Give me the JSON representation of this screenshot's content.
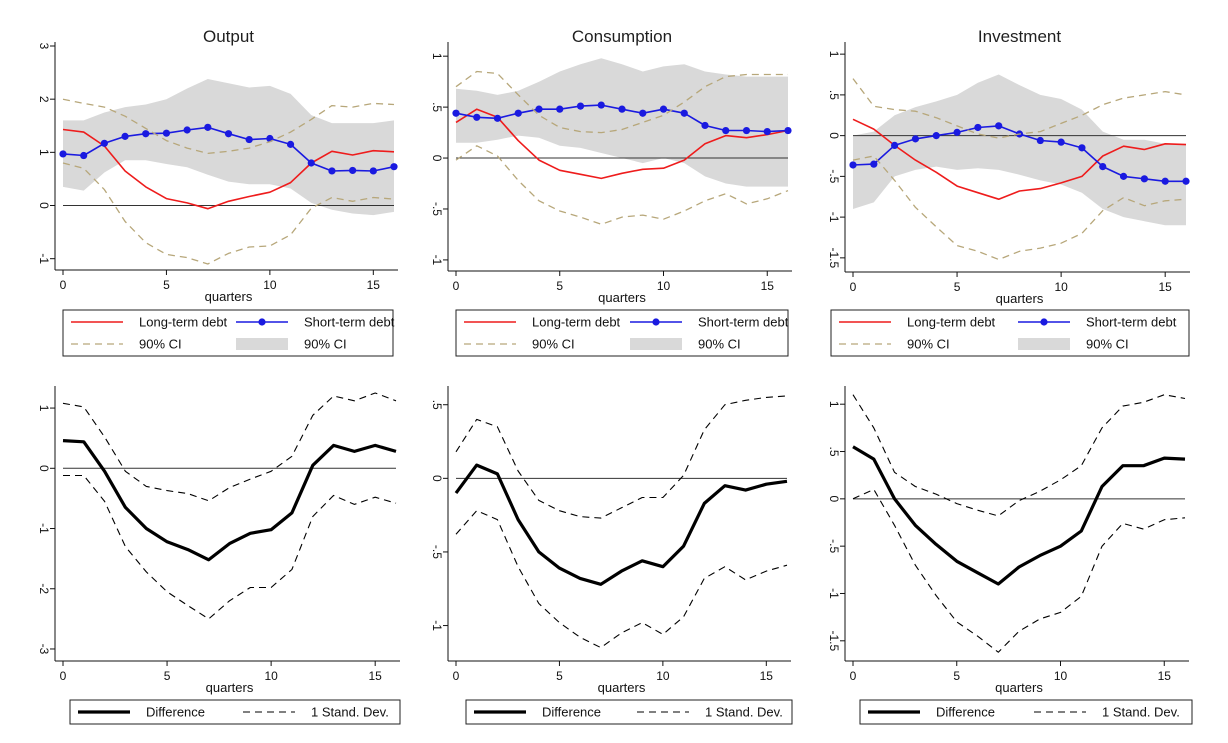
{
  "colors": {
    "long_term": "#ee1c1c",
    "short_term": "#1a1ae0",
    "ci_line": "#b7a77a",
    "ci_band": "#d9d9d9",
    "difference": "#000000"
  },
  "chart_data": [
    {
      "type": "line",
      "title": "Output",
      "xlabel": "quarters",
      "x": [
        0,
        1,
        2,
        3,
        4,
        5,
        6,
        7,
        8,
        9,
        10,
        11,
        12,
        13,
        14,
        15,
        16
      ],
      "xlim": [
        0,
        16
      ],
      "xticks": [
        0,
        5,
        10,
        15
      ],
      "ylim": [
        -1.1,
        3
      ],
      "yticks": [
        -1,
        0,
        1,
        2,
        3
      ],
      "ytick_labels": [
        "-1",
        "0",
        "1",
        "2",
        "3"
      ],
      "zero_line": true,
      "series": [
        {
          "name": "Long-term debt",
          "kind": "line",
          "values": [
            1.43,
            1.38,
            1.12,
            0.65,
            0.35,
            0.13,
            0.05,
            -0.06,
            0.08,
            0.17,
            0.25,
            0.43,
            0.8,
            1.02,
            0.95,
            1.03,
            1.01
          ]
        },
        {
          "name": "Short-term debt",
          "kind": "marker-line",
          "values": [
            0.97,
            0.94,
            1.17,
            1.3,
            1.35,
            1.36,
            1.42,
            1.47,
            1.35,
            1.24,
            1.26,
            1.15,
            0.8,
            0.65,
            0.66,
            0.65,
            0.73
          ]
        },
        {
          "name": "90% CI",
          "kind": "dash",
          "values": [
            2.0,
            1.92,
            1.85,
            1.68,
            1.45,
            1.22,
            1.08,
            0.98,
            1.02,
            1.08,
            1.2,
            1.38,
            1.62,
            1.88,
            1.85,
            1.92,
            1.9
          ]
        },
        {
          "name": "90% CI",
          "kind": "dash",
          "values": [
            0.8,
            0.7,
            0.3,
            -0.3,
            -0.7,
            -0.92,
            -0.98,
            -1.1,
            -0.9,
            -0.78,
            -0.76,
            -0.55,
            -0.05,
            0.15,
            0.08,
            0.15,
            0.12
          ]
        },
        {
          "name": "90% CI",
          "kind": "band",
          "upper": [
            1.6,
            1.6,
            1.75,
            1.85,
            1.9,
            2.0,
            2.2,
            2.38,
            2.3,
            2.22,
            2.25,
            2.1,
            1.7,
            1.55,
            1.55,
            1.55,
            1.6
          ],
          "lower": [
            0.35,
            0.28,
            0.62,
            0.85,
            0.85,
            0.78,
            0.72,
            0.58,
            0.45,
            0.4,
            0.4,
            0.32,
            0.05,
            -0.08,
            -0.15,
            -0.18,
            -0.12
          ]
        }
      ],
      "legend": {
        "placement": "bottom",
        "items": [
          {
            "label": "Long-term debt",
            "kind": "line"
          },
          {
            "label": "Short-term debt",
            "kind": "marker-line"
          },
          {
            "label": "90% CI",
            "kind": "dash"
          },
          {
            "label": "90% CI",
            "kind": "band"
          }
        ]
      }
    },
    {
      "type": "line",
      "title": "Consumption",
      "xlabel": "quarters",
      "x": [
        0,
        1,
        2,
        3,
        4,
        5,
        6,
        7,
        8,
        9,
        10,
        11,
        12,
        13,
        14,
        15,
        16
      ],
      "xlim": [
        0,
        16
      ],
      "xticks": [
        0,
        5,
        10,
        15
      ],
      "ylim": [
        -1.05,
        1.1
      ],
      "yticks": [
        -1,
        -0.5,
        0,
        0.5,
        1
      ],
      "ytick_labels": [
        "-1",
        "-.5",
        "0",
        ".5",
        "1"
      ],
      "zero_line": true,
      "series": [
        {
          "name": "Long-term debt",
          "kind": "line",
          "values": [
            0.35,
            0.48,
            0.4,
            0.17,
            -0.02,
            -0.12,
            -0.16,
            -0.2,
            -0.15,
            -0.11,
            -0.1,
            -0.02,
            0.14,
            0.22,
            0.2,
            0.23,
            0.27
          ]
        },
        {
          "name": "Short-term debt",
          "kind": "marker-line",
          "values": [
            0.44,
            0.4,
            0.39,
            0.44,
            0.48,
            0.48,
            0.51,
            0.52,
            0.48,
            0.44,
            0.48,
            0.44,
            0.32,
            0.27,
            0.27,
            0.26,
            0.27
          ]
        },
        {
          "name": "90% CI",
          "kind": "dash",
          "values": [
            0.7,
            0.85,
            0.83,
            0.62,
            0.42,
            0.3,
            0.26,
            0.25,
            0.28,
            0.35,
            0.42,
            0.55,
            0.7,
            0.8,
            0.82,
            0.82,
            0.82
          ]
        },
        {
          "name": "90% CI",
          "kind": "dash",
          "values": [
            -0.02,
            0.12,
            0.02,
            -0.22,
            -0.42,
            -0.52,
            -0.58,
            -0.65,
            -0.58,
            -0.56,
            -0.6,
            -0.52,
            -0.42,
            -0.35,
            -0.45,
            -0.4,
            -0.32
          ]
        },
        {
          "name": "90% CI",
          "kind": "band",
          "upper": [
            0.68,
            0.66,
            0.62,
            0.66,
            0.75,
            0.85,
            0.92,
            0.98,
            0.92,
            0.85,
            0.9,
            0.92,
            0.85,
            0.82,
            0.8,
            0.8,
            0.8
          ],
          "lower": [
            0.15,
            0.15,
            0.18,
            0.22,
            0.2,
            0.12,
            0.1,
            0.05,
            0.0,
            -0.05,
            0.0,
            -0.05,
            -0.18,
            -0.25,
            -0.28,
            -0.28,
            -0.28
          ]
        }
      ],
      "legend": {
        "placement": "bottom",
        "items": [
          {
            "label": "Long-term debt",
            "kind": "line"
          },
          {
            "label": "Short-term debt",
            "kind": "marker-line"
          },
          {
            "label": "90% CI",
            "kind": "dash"
          },
          {
            "label": "90% CI",
            "kind": "band"
          }
        ]
      }
    },
    {
      "type": "line",
      "title": "Investment",
      "xlabel": "quarters",
      "x": [
        0,
        1,
        2,
        3,
        4,
        5,
        6,
        7,
        8,
        9,
        10,
        11,
        12,
        13,
        14,
        15,
        16
      ],
      "xlim": [
        0,
        16
      ],
      "xticks": [
        0,
        5,
        10,
        15
      ],
      "ylim": [
        -1.6,
        1.1
      ],
      "yticks": [
        -1.5,
        -1,
        -0.5,
        0,
        0.5,
        1
      ],
      "ytick_labels": [
        "-1.5",
        "-1",
        "-.5",
        "0",
        ".5",
        "1"
      ],
      "zero_line": true,
      "series": [
        {
          "name": "Long-term debt",
          "kind": "line",
          "values": [
            0.2,
            0.08,
            -0.12,
            -0.3,
            -0.45,
            -0.62,
            -0.7,
            -0.78,
            -0.68,
            -0.65,
            -0.58,
            -0.5,
            -0.25,
            -0.13,
            -0.17,
            -0.1,
            -0.11
          ]
        },
        {
          "name": "Short-term debt",
          "kind": "marker-line",
          "values": [
            -0.36,
            -0.35,
            -0.12,
            -0.04,
            0.0,
            0.04,
            0.1,
            0.12,
            0.02,
            -0.06,
            -0.08,
            -0.15,
            -0.38,
            -0.5,
            -0.53,
            -0.56,
            -0.56
          ]
        },
        {
          "name": "90% CI",
          "kind": "dash",
          "values": [
            0.7,
            0.36,
            0.32,
            0.3,
            0.22,
            0.12,
            0.02,
            -0.03,
            0.02,
            0.05,
            0.15,
            0.25,
            0.38,
            0.46,
            0.5,
            0.54,
            0.5
          ]
        },
        {
          "name": "90% CI",
          "kind": "dash",
          "values": [
            -0.3,
            -0.25,
            -0.55,
            -0.88,
            -1.12,
            -1.35,
            -1.42,
            -1.52,
            -1.42,
            -1.38,
            -1.32,
            -1.2,
            -0.92,
            -0.76,
            -0.86,
            -0.8,
            -0.78
          ]
        },
        {
          "name": "90% CI",
          "kind": "band",
          "upper": [
            0.0,
            0.05,
            0.25,
            0.35,
            0.42,
            0.5,
            0.65,
            0.75,
            0.62,
            0.5,
            0.45,
            0.32,
            0.05,
            -0.05,
            -0.05,
            -0.1,
            -0.1
          ],
          "lower": [
            -0.9,
            -0.82,
            -0.5,
            -0.42,
            -0.38,
            -0.42,
            -0.4,
            -0.42,
            -0.48,
            -0.55,
            -0.6,
            -0.7,
            -0.9,
            -1.0,
            -1.05,
            -1.1,
            -1.1
          ]
        }
      ],
      "legend": {
        "placement": "bottom",
        "items": [
          {
            "label": "Long-term debt",
            "kind": "line"
          },
          {
            "label": "Short-term debt",
            "kind": "marker-line"
          },
          {
            "label": "90% CI",
            "kind": "dash"
          },
          {
            "label": "90% CI",
            "kind": "band"
          }
        ]
      }
    },
    {
      "type": "line",
      "title": "",
      "xlabel": "quarters",
      "x": [
        0,
        1,
        2,
        3,
        4,
        5,
        6,
        7,
        8,
        9,
        10,
        11,
        12,
        13,
        14,
        15,
        16
      ],
      "xlim": [
        0,
        16
      ],
      "xticks": [
        0,
        5,
        10,
        15
      ],
      "ylim": [
        -3.1,
        1.3
      ],
      "yticks": [
        -3,
        -2,
        -1,
        0,
        1
      ],
      "ytick_labels": [
        "-3",
        "-2",
        "-1",
        "0",
        "1"
      ],
      "zero_line": true,
      "series": [
        {
          "name": "Difference",
          "kind": "thick",
          "values": [
            0.46,
            0.44,
            -0.05,
            -0.65,
            -1.0,
            -1.22,
            -1.35,
            -1.52,
            -1.25,
            -1.08,
            -1.02,
            -0.74,
            0.05,
            0.38,
            0.28,
            0.38,
            0.28
          ]
        },
        {
          "name": "1 Stand. Dev.",
          "kind": "dash-black",
          "values": [
            1.08,
            1.02,
            0.52,
            -0.05,
            -0.3,
            -0.37,
            -0.42,
            -0.54,
            -0.32,
            -0.18,
            -0.05,
            0.2,
            0.88,
            1.2,
            1.12,
            1.25,
            1.12
          ]
        },
        {
          "name": "1 Stand. Dev.",
          "kind": "dash-black",
          "values": [
            -0.12,
            -0.12,
            -0.55,
            -1.3,
            -1.72,
            -2.05,
            -2.28,
            -2.5,
            -2.2,
            -1.98,
            -1.98,
            -1.68,
            -0.8,
            -0.45,
            -0.6,
            -0.48,
            -0.58
          ]
        }
      ],
      "legend": {
        "placement": "bottom",
        "items": [
          {
            "label": "Difference",
            "kind": "thick"
          },
          {
            "label": "1 Stand. Dev.",
            "kind": "dash-black"
          }
        ]
      }
    },
    {
      "type": "line",
      "title": "",
      "xlabel": "quarters",
      "x": [
        0,
        1,
        2,
        3,
        4,
        5,
        6,
        7,
        8,
        9,
        10,
        11,
        12,
        13,
        14,
        15,
        16
      ],
      "xlim": [
        0,
        16
      ],
      "xticks": [
        0,
        5,
        10,
        15
      ],
      "ylim": [
        -1.2,
        0.6
      ],
      "yticks": [
        -1,
        -0.5,
        0,
        0.5
      ],
      "ytick_labels": [
        "-1",
        "-.5",
        "0",
        ".5"
      ],
      "zero_line": true,
      "series": [
        {
          "name": "Difference",
          "kind": "thick",
          "values": [
            -0.1,
            0.09,
            0.03,
            -0.28,
            -0.5,
            -0.61,
            -0.68,
            -0.72,
            -0.63,
            -0.56,
            -0.6,
            -0.46,
            -0.17,
            -0.05,
            -0.08,
            -0.04,
            -0.02
          ]
        },
        {
          "name": "1 Stand. Dev.",
          "kind": "dash-black",
          "values": [
            0.18,
            0.4,
            0.35,
            0.05,
            -0.15,
            -0.22,
            -0.26,
            -0.27,
            -0.2,
            -0.13,
            -0.13,
            0.02,
            0.33,
            0.5,
            0.53,
            0.55,
            0.56
          ]
        },
        {
          "name": "1 Stand. Dev.",
          "kind": "dash-black",
          "values": [
            -0.38,
            -0.22,
            -0.28,
            -0.6,
            -0.85,
            -0.98,
            -1.08,
            -1.15,
            -1.05,
            -0.98,
            -1.06,
            -0.94,
            -0.68,
            -0.6,
            -0.69,
            -0.63,
            -0.59
          ]
        }
      ],
      "legend": {
        "placement": "bottom",
        "items": [
          {
            "label": "Difference",
            "kind": "thick"
          },
          {
            "label": "1 Stand. Dev.",
            "kind": "dash-black"
          }
        ]
      }
    },
    {
      "type": "line",
      "title": "",
      "xlabel": "quarters",
      "x": [
        0,
        1,
        2,
        3,
        4,
        5,
        6,
        7,
        8,
        9,
        10,
        11,
        12,
        13,
        14,
        15,
        16
      ],
      "xlim": [
        0,
        16
      ],
      "xticks": [
        0,
        5,
        10,
        15
      ],
      "ylim": [
        -1.65,
        1.15
      ],
      "yticks": [
        -1.5,
        -1,
        -0.5,
        0,
        0.5,
        1
      ],
      "ytick_labels": [
        "-1.5",
        "-1",
        "-.5",
        "0",
        ".5",
        "1"
      ],
      "zero_line": true,
      "series": [
        {
          "name": "Difference",
          "kind": "thick",
          "values": [
            0.55,
            0.42,
            0.0,
            -0.28,
            -0.48,
            -0.66,
            -0.78,
            -0.9,
            -0.72,
            -0.6,
            -0.5,
            -0.34,
            0.13,
            0.35,
            0.35,
            0.43,
            0.42
          ]
        },
        {
          "name": "1 Stand. Dev.",
          "kind": "dash-black",
          "values": [
            1.1,
            0.75,
            0.28,
            0.13,
            0.05,
            -0.05,
            -0.12,
            -0.18,
            -0.02,
            0.08,
            0.2,
            0.35,
            0.75,
            0.98,
            1.02,
            1.1,
            1.06
          ]
        },
        {
          "name": "1 Stand. Dev.",
          "kind": "dash-black",
          "values": [
            0.0,
            0.1,
            -0.28,
            -0.7,
            -1.02,
            -1.3,
            -1.45,
            -1.62,
            -1.4,
            -1.27,
            -1.2,
            -1.03,
            -0.5,
            -0.26,
            -0.32,
            -0.22,
            -0.2
          ]
        }
      ],
      "legend": {
        "placement": "bottom",
        "items": [
          {
            "label": "Difference",
            "kind": "thick"
          },
          {
            "label": "1 Stand. Dev.",
            "kind": "dash-black"
          }
        ]
      }
    }
  ]
}
